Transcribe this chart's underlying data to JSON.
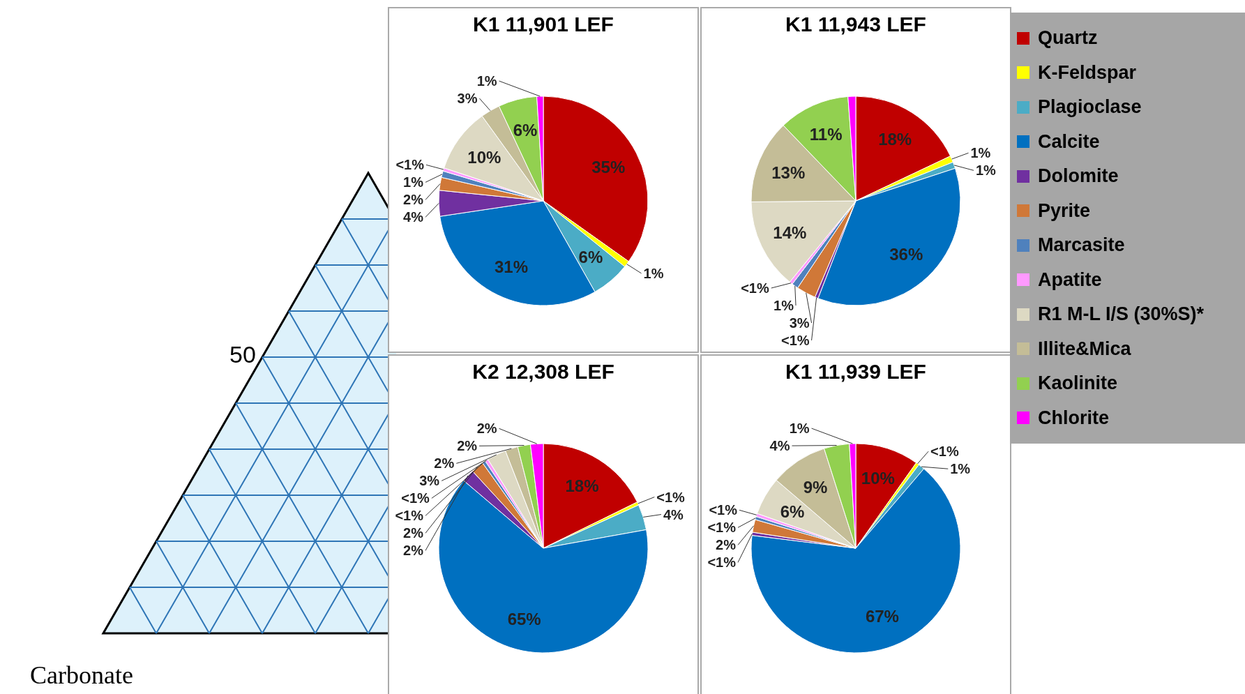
{
  "chart_data": [
    {
      "type": "other",
      "annotations": [
        "50",
        "Carbonate"
      ]
    },
    {
      "type": "pie",
      "title": "K1 11,901 LEF",
      "legend": "right",
      "categories": [
        "Quartz",
        "K-Feldspar",
        "Plagioclase",
        "Calcite",
        "Dolomite",
        "Pyrite",
        "Marcasite",
        "Apatite",
        "R1 M-L I/S (30%S)*",
        "Illite&Mica",
        "Kaolinite",
        "Chlorite"
      ],
      "colors": [
        "#c00000",
        "#ffff00",
        "#4bacc6",
        "#0070c0",
        "#7030a0",
        "#d07838",
        "#4f81bd",
        "#ff99ff",
        "#ddd9c3",
        "#c4bd97",
        "#92d050",
        "#ff00ff"
      ],
      "values": [
        35,
        1,
        6,
        31,
        4,
        2,
        1,
        0.5,
        10,
        3,
        6,
        1
      ],
      "value_labels": [
        "35%",
        "1%",
        "6%",
        "31%",
        "4%",
        "2%",
        "1%",
        "<1%",
        "10%",
        "3%",
        "6%",
        "1%"
      ]
    },
    {
      "type": "pie",
      "title": "K1 11,943 LEF",
      "categories": [
        null,
        null,
        null,
        null,
        null,
        null,
        null,
        null,
        null,
        null,
        null,
        null
      ],
      "colors": [
        "#c00000",
        "#ffff00",
        "#4bacc6",
        "#0070c0",
        "#7030a0",
        "#d07838",
        "#4f81bd",
        "#ff99ff",
        "#ddd9c3",
        "#c4bd97",
        "#92d050",
        "#ff00ff"
      ],
      "values": [
        18,
        1,
        1,
        36,
        0.5,
        3,
        1,
        0.5,
        14,
        13,
        11,
        1.2
      ],
      "value_labels": [
        "18%",
        "1%",
        "1%",
        "36%",
        "<1%",
        "3%",
        "1%",
        "<1%",
        "14%",
        "13%",
        "11%",
        null
      ]
    },
    {
      "type": "pie",
      "title": "K2 12,308 LEF",
      "categories": [
        null,
        null,
        null,
        null,
        null,
        null,
        null,
        null,
        null,
        null,
        null,
        null
      ],
      "colors": [
        "#c00000",
        "#ffff00",
        "#4bacc6",
        "#0070c0",
        "#7030a0",
        "#d07838",
        "#4f81bd",
        "#ff99ff",
        "#ddd9c3",
        "#c4bd97",
        "#92d050",
        "#ff00ff"
      ],
      "values": [
        18,
        0.5,
        4,
        65,
        2,
        2,
        0.5,
        0.5,
        3,
        2,
        2,
        2
      ],
      "value_labels": [
        "18%",
        "<1%",
        "4%",
        "65%",
        "2%",
        "2%",
        "<1%",
        "<1%",
        "3%",
        "2%",
        "2%",
        "2%"
      ]
    },
    {
      "type": "pie",
      "title": "K1 11,939 LEF",
      "categories": [
        null,
        null,
        null,
        null,
        null,
        null,
        null,
        null,
        null,
        null,
        null,
        null
      ],
      "colors": [
        "#c00000",
        "#ffff00",
        "#4bacc6",
        "#0070c0",
        "#7030a0",
        "#d07838",
        "#4f81bd",
        "#ff99ff",
        "#ddd9c3",
        "#c4bd97",
        "#92d050",
        "#ff00ff"
      ],
      "values": [
        10,
        0.5,
        1,
        67,
        0.5,
        2,
        0.5,
        0.5,
        6,
        9,
        4,
        1
      ],
      "value_labels": [
        "10%",
        "<1%",
        "1%",
        "67%",
        "<1%",
        "2%",
        "<1%",
        "<1%",
        "6%",
        "9%",
        "4%",
        "1%"
      ]
    }
  ]
}
